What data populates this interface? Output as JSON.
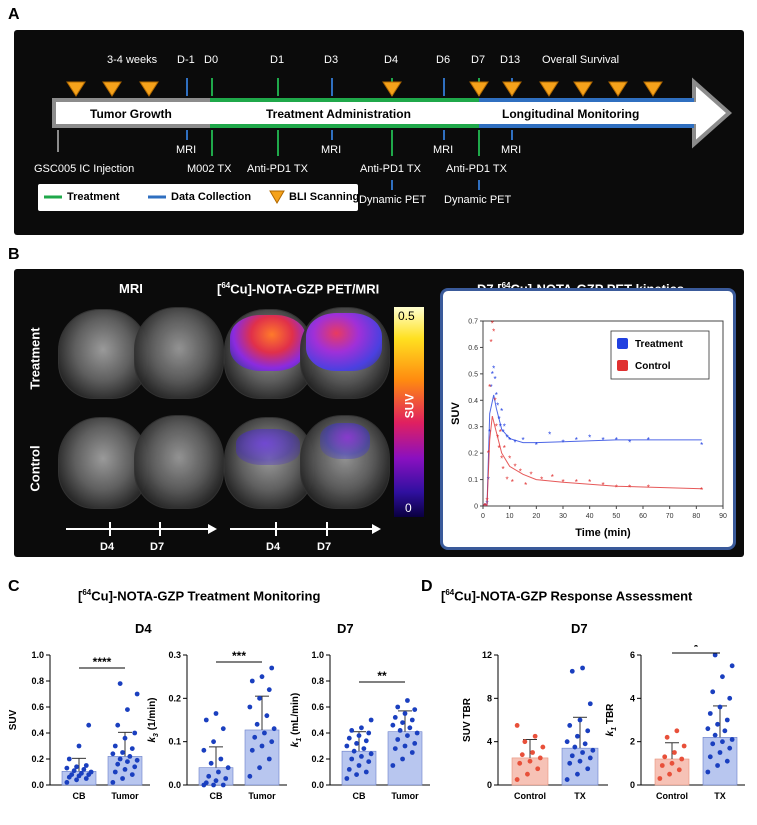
{
  "panel_labels": {
    "a": "A",
    "b": "B",
    "c": "C",
    "d": "D"
  },
  "timeline": {
    "top_labels": [
      "3-4 weeks",
      "D-1",
      "D0",
      "D1",
      "D3",
      "D4",
      "D6",
      "D7",
      "D13",
      "Overall Survival"
    ],
    "phases": [
      "Tumor Growth",
      "Treatment Administration",
      "Longitudinal Monitoring"
    ],
    "below_labels": {
      "mri1": "MRI",
      "mri2": "MRI",
      "mri3": "MRI",
      "mri4": "MRI",
      "injection": "GSC005 IC Injection",
      "m002": "M002 TX",
      "apd1_d1": "Anti-PD1 TX",
      "apd1_d4": "Anti-PD1 TX",
      "apd1_d7": "Anti-PD1 TX",
      "pet_d4": "Dynamic PET",
      "pet_d7": "Dynamic PET"
    },
    "legend": {
      "treatment": "Treatment",
      "data": "Data Collection",
      "bli": "BLI Scanning"
    },
    "colors": {
      "treatment": "#1fa84a",
      "data": "#2f6fc0",
      "bli": "#f5a21b",
      "gray": "#8c8c8c"
    }
  },
  "imaging": {
    "mri_title": "MRI",
    "pet_title_pre": "[",
    "pet_title_sup": "64",
    "pet_title_post": "Cu]-NOTA-GZP PET/MRI",
    "row_treatment": "Treatment",
    "row_control": "Control",
    "colorbar_max": "0.5",
    "colorbar_label": "SUV",
    "colorbar_min": "0",
    "time_d4": "D4",
    "time_d7": "D7"
  },
  "kinetics_title_pre": "D7 [",
  "kinetics_title_sup": "64",
  "kinetics_title_post": "Cu]-NOTA-GZP PET kinetics",
  "section_c_title_pre": "[",
  "section_c_title_sup": "64",
  "section_c_title_post": "Cu]-NOTA-GZP Treatment Monitoring",
  "section_d_title_pre": "[",
  "section_d_title_sup": "64",
  "section_d_title_post": "Cu]-NOTA-GZP Response Assessment",
  "sub_d4": "D4",
  "sub_d7_c": "D7",
  "sub_d7_d": "D7",
  "chart_data": [
    {
      "id": "kinetics",
      "type": "scatter",
      "title": "D7 [64Cu]-NOTA-GZP PET kinetics",
      "xlabel": "Time (min)",
      "ylabel": "SUV",
      "xlim": [
        0,
        90
      ],
      "ylim": [
        0,
        0.7
      ],
      "xticks": [
        0,
        10,
        20,
        30,
        40,
        50,
        60,
        70,
        80,
        90
      ],
      "yticks": [
        0,
        0.1,
        0.2,
        0.3,
        0.4,
        0.5,
        0.6,
        0.7
      ],
      "legend": [
        "Treatment",
        "Control"
      ],
      "series": [
        {
          "name": "Treatment",
          "color": "#2140e0",
          "points": [
            [
              0.5,
              0
            ],
            [
              1,
              0
            ],
            [
              1.5,
              0.01
            ],
            [
              2,
              0.1
            ],
            [
              2.5,
              0.28
            ],
            [
              3,
              0.45
            ],
            [
              3.5,
              0.5
            ],
            [
              4,
              0.52
            ],
            [
              4.5,
              0.48
            ],
            [
              5,
              0.42
            ],
            [
              5.5,
              0.38
            ],
            [
              6,
              0.33
            ],
            [
              6.5,
              0.3
            ],
            [
              7,
              0.36
            ],
            [
              7.5,
              0.28
            ],
            [
              8,
              0.3
            ],
            [
              9,
              0.26
            ],
            [
              10,
              0.25
            ],
            [
              12,
              0.24
            ],
            [
              15,
              0.25
            ],
            [
              20,
              0.23
            ],
            [
              25,
              0.27
            ],
            [
              30,
              0.24
            ],
            [
              35,
              0.25
            ],
            [
              40,
              0.26
            ],
            [
              45,
              0.25
            ],
            [
              50,
              0.25
            ],
            [
              55,
              0.24
            ],
            [
              62,
              0.25
            ],
            [
              82,
              0.23
            ]
          ],
          "fit": [
            [
              1.5,
              0
            ],
            [
              2.5,
              0.35
            ],
            [
              4,
              0.42
            ],
            [
              5,
              0.37
            ],
            [
              7,
              0.29
            ],
            [
              10,
              0.255
            ],
            [
              15,
              0.24
            ],
            [
              20,
              0.24
            ],
            [
              30,
              0.243
            ],
            [
              50,
              0.25
            ],
            [
              82,
              0.25
            ]
          ]
        },
        {
          "name": "Control",
          "color": "#e03030",
          "points": [
            [
              0.5,
              0
            ],
            [
              1,
              0
            ],
            [
              1.5,
              0.02
            ],
            [
              2,
              0.2
            ],
            [
              2.5,
              0.45
            ],
            [
              3,
              0.62
            ],
            [
              3.5,
              0.69
            ],
            [
              4,
              0.66
            ],
            [
              4.5,
              0.4
            ],
            [
              5,
              0.3
            ],
            [
              5.5,
              0.26
            ],
            [
              6,
              0.22
            ],
            [
              6.5,
              0.28
            ],
            [
              7,
              0.18
            ],
            [
              7.5,
              0.14
            ],
            [
              8,
              0.22
            ],
            [
              9,
              0.1
            ],
            [
              10,
              0.18
            ],
            [
              11,
              0.09
            ],
            [
              12,
              0.15
            ],
            [
              14,
              0.13
            ],
            [
              16,
              0.08
            ],
            [
              18,
              0.12
            ],
            [
              22,
              0.1
            ],
            [
              26,
              0.11
            ],
            [
              30,
              0.09
            ],
            [
              35,
              0.09
            ],
            [
              40,
              0.09
            ],
            [
              45,
              0.08
            ],
            [
              50,
              0.07
            ],
            [
              55,
              0.07
            ],
            [
              62,
              0.07
            ],
            [
              82,
              0.06
            ]
          ],
          "fit": [
            [
              1.5,
              0
            ],
            [
              2.5,
              0.25
            ],
            [
              3.5,
              0.34
            ],
            [
              5,
              0.28
            ],
            [
              7,
              0.2
            ],
            [
              10,
              0.15
            ],
            [
              15,
              0.12
            ],
            [
              20,
              0.1
            ],
            [
              30,
              0.09
            ],
            [
              50,
              0.075
            ],
            [
              82,
              0.065
            ]
          ]
        }
      ]
    },
    {
      "id": "c1",
      "type": "bar",
      "section": "C",
      "subtitle": "D4",
      "ylabel": "SUV",
      "ylim": [
        0,
        1.0
      ],
      "yticks": [
        "0.0",
        "0.2",
        "0.4",
        "0.6",
        "0.8",
        "1.0"
      ],
      "categories": [
        "CB",
        "Tumor"
      ],
      "means": [
        0.105,
        0.22
      ],
      "sd": [
        0.1,
        0.185
      ],
      "significance": "****",
      "points": [
        [
          0.02,
          0.04,
          0.05,
          0.06,
          0.07,
          0.08,
          0.08,
          0.09,
          0.1,
          0.11,
          0.12,
          0.13,
          0.14,
          0.15,
          0.2,
          0.3,
          0.46
        ],
        [
          0.02,
          0.05,
          0.08,
          0.1,
          0.12,
          0.14,
          0.16,
          0.18,
          0.19,
          0.2,
          0.22,
          0.24,
          0.25,
          0.28,
          0.3,
          0.36,
          0.4,
          0.46,
          0.58,
          0.7,
          0.78
        ]
      ]
    },
    {
      "id": "c2",
      "type": "bar",
      "section": "C",
      "subtitle": "D4",
      "ylabel": "k3 (1/min)",
      "ylabel_base": "k",
      "ylabel_sub": "3",
      "ylabel_rest": " (1/min)",
      "ylim": [
        0,
        0.3
      ],
      "yticks": [
        "0.0",
        "0.1",
        "0.2",
        "0.3"
      ],
      "categories": [
        "CB",
        "Tumor"
      ],
      "means": [
        0.04,
        0.127
      ],
      "sd": [
        0.048,
        0.078
      ],
      "significance": "***",
      "points": [
        [
          0.0,
          0.0,
          0.0,
          0.005,
          0.01,
          0.015,
          0.02,
          0.03,
          0.04,
          0.05,
          0.06,
          0.08,
          0.1,
          0.13,
          0.15,
          0.165
        ],
        [
          0.02,
          0.04,
          0.06,
          0.08,
          0.09,
          0.1,
          0.11,
          0.12,
          0.13,
          0.14,
          0.16,
          0.18,
          0.2,
          0.22,
          0.24,
          0.25,
          0.27
        ]
      ]
    },
    {
      "id": "c3",
      "type": "bar",
      "section": "C",
      "subtitle": "D7",
      "ylabel": "k1 (mL/min)",
      "ylabel_base": "k",
      "ylabel_sub": "1",
      "ylabel_rest": " (mL/min)",
      "ylim": [
        0,
        1.0
      ],
      "yticks": [
        "0.0",
        "0.2",
        "0.4",
        "0.6",
        "0.8",
        "1.0"
      ],
      "categories": [
        "CB",
        "Tumor"
      ],
      "means": [
        0.26,
        0.41
      ],
      "sd": [
        0.15,
        0.16
      ],
      "significance": "**",
      "points": [
        [
          0.05,
          0.08,
          0.1,
          0.12,
          0.15,
          0.18,
          0.2,
          0.22,
          0.24,
          0.26,
          0.28,
          0.3,
          0.32,
          0.34,
          0.36,
          0.38,
          0.4,
          0.42,
          0.44,
          0.5
        ],
        [
          0.15,
          0.2,
          0.25,
          0.28,
          0.3,
          0.32,
          0.35,
          0.38,
          0.4,
          0.42,
          0.44,
          0.46,
          0.48,
          0.5,
          0.52,
          0.55,
          0.58,
          0.6,
          0.65
        ]
      ]
    },
    {
      "id": "d1",
      "type": "bar",
      "section": "D",
      "subtitle": "D7",
      "ylabel": "SUV TBR",
      "ylim": [
        0,
        12
      ],
      "yticks": [
        "0",
        "4",
        "8",
        "12"
      ],
      "categories": [
        "Control",
        "TX"
      ],
      "means": [
        2.5,
        3.4
      ],
      "sd": [
        1.7,
        2.85
      ],
      "significance": "",
      "points": [
        [
          0.5,
          1.0,
          1.5,
          2.0,
          2.2,
          2.5,
          2.8,
          3.0,
          3.5,
          4.0,
          4.5,
          5.5
        ],
        [
          0.5,
          1.0,
          1.5,
          2.0,
          2.2,
          2.5,
          2.7,
          3.0,
          3.2,
          3.5,
          3.8,
          4.0,
          4.5,
          5.0,
          5.5,
          6.0,
          7.5,
          10.5,
          10.8
        ]
      ]
    },
    {
      "id": "d2",
      "type": "bar",
      "section": "D",
      "subtitle": "D7",
      "ylabel": "k1 TBR",
      "ylabel_base": "k",
      "ylabel_sub": "1",
      "ylabel_rest": " TBR",
      "ylim": [
        0,
        6
      ],
      "yticks": [
        "0",
        "2",
        "4",
        "6"
      ],
      "categories": [
        "Control",
        "TX"
      ],
      "means": [
        1.2,
        2.2
      ],
      "sd": [
        0.75,
        1.45
      ],
      "significance": "*",
      "points": [
        [
          0.3,
          0.5,
          0.7,
          0.9,
          1.0,
          1.2,
          1.3,
          1.5,
          1.8,
          2.2,
          2.5
        ],
        [
          0.6,
          0.9,
          1.1,
          1.3,
          1.5,
          1.7,
          1.9,
          2.0,
          2.1,
          2.3,
          2.5,
          2.6,
          2.8,
          3.0,
          3.3,
          3.6,
          4.0,
          4.3,
          5.0,
          5.5,
          6.0
        ]
      ]
    }
  ]
}
